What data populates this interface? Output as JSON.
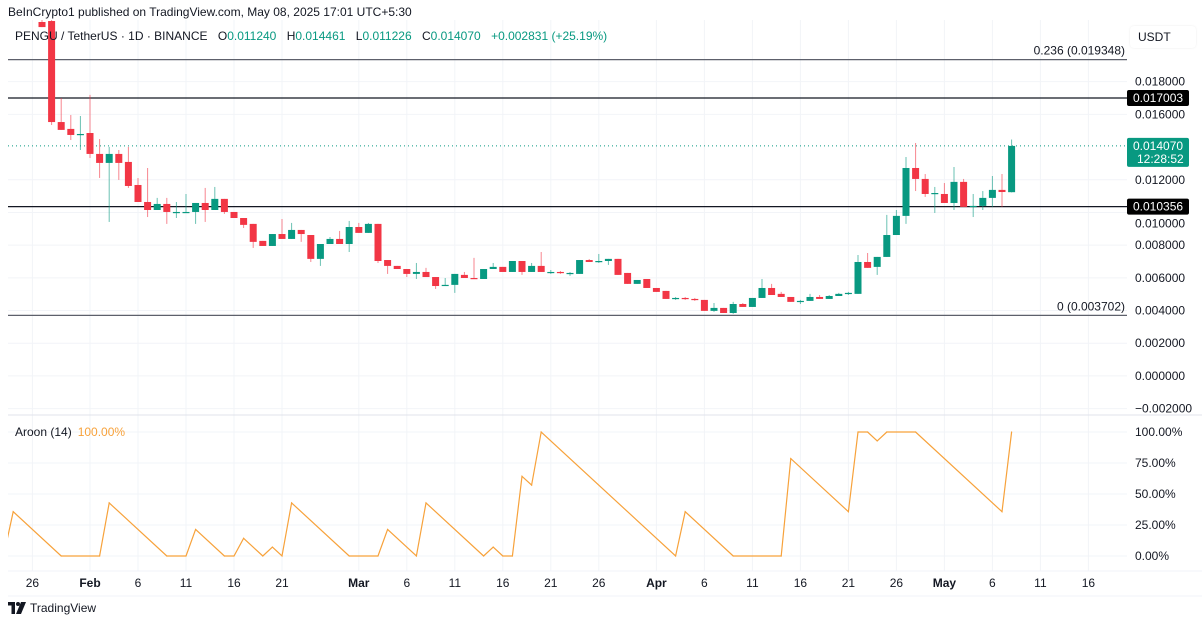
{
  "header": {
    "published": "BeInCrypto1 published on TradingView.com, May 08, 2025 17:01 UTC+5:30",
    "symbol": "PENGU / TetherUS · 1D · BINANCE",
    "open_label": "O",
    "open": "0.011240",
    "high_label": "H",
    "high": "0.014461",
    "low_label": "L",
    "low": "0.011226",
    "close_label": "C",
    "close": "0.014070",
    "change": "+0.002831 (+25.19%)"
  },
  "price_axis": {
    "currency": "USDT",
    "ticks": [
      "0.018000",
      "0.016000",
      "0.012000",
      "0.010000",
      "0.008000",
      "0.006000",
      "0.004000",
      "0.002000",
      "0.000000",
      "−0.002000"
    ]
  },
  "levels": [
    {
      "label": "0.236 (0.019348)",
      "value": 0.019348,
      "kind": "fib"
    },
    {
      "label": "0.017003",
      "value": 0.017003,
      "kind": "badge"
    },
    {
      "label": "0.010356",
      "value": 0.010356,
      "kind": "badge"
    },
    {
      "label": "0 (0.003702)",
      "value": 0.003702,
      "kind": "fib"
    }
  ],
  "last_price": {
    "value": 0.01407,
    "label": "0.014070",
    "countdown": "12:28:52"
  },
  "indicator": {
    "name": "Aroon (14)",
    "value": "100.00%",
    "ticks": [
      {
        "label": "100.00%",
        "value": 100
      },
      {
        "label": "75.00%",
        "value": 75
      },
      {
        "label": "50.00%",
        "value": 50
      },
      {
        "label": "25.00%",
        "value": 25
      },
      {
        "label": "0.00%",
        "value": 0
      }
    ]
  },
  "time_axis": {
    "ticks": [
      {
        "label": "26",
        "date": "2025-01-26",
        "major": false
      },
      {
        "label": "Feb",
        "date": "2025-02-01",
        "major": true
      },
      {
        "label": "6",
        "date": "2025-02-06",
        "major": false
      },
      {
        "label": "11",
        "date": "2025-02-11",
        "major": false
      },
      {
        "label": "16",
        "date": "2025-02-16",
        "major": false
      },
      {
        "label": "21",
        "date": "2025-02-21",
        "major": false
      },
      {
        "label": "Mar",
        "date": "2025-03-01",
        "major": true
      },
      {
        "label": "6",
        "date": "2025-03-06",
        "major": false
      },
      {
        "label": "11",
        "date": "2025-03-11",
        "major": false
      },
      {
        "label": "16",
        "date": "2025-03-16",
        "major": false
      },
      {
        "label": "21",
        "date": "2025-03-21",
        "major": false
      },
      {
        "label": "26",
        "date": "2025-03-26",
        "major": false
      },
      {
        "label": "Apr",
        "date": "2025-04-01",
        "major": true
      },
      {
        "label": "6",
        "date": "2025-04-06",
        "major": false
      },
      {
        "label": "11",
        "date": "2025-04-11",
        "major": false
      },
      {
        "label": "16",
        "date": "2025-04-16",
        "major": false
      },
      {
        "label": "21",
        "date": "2025-04-21",
        "major": false
      },
      {
        "label": "26",
        "date": "2025-04-26",
        "major": false
      },
      {
        "label": "May",
        "date": "2025-05-01",
        "major": true
      },
      {
        "label": "6",
        "date": "2025-05-06",
        "major": false
      },
      {
        "label": "11",
        "date": "2025-05-11",
        "major": false
      },
      {
        "label": "16",
        "date": "2025-05-16",
        "major": false
      }
    ]
  },
  "footer": {
    "brand": "TradingView"
  },
  "colors": {
    "up": "#089981",
    "down": "#f23645",
    "aroon_up": "#f7a23b",
    "level": "#131722",
    "fib": "#787b86"
  },
  "chart_data": {
    "type": "candlestick",
    "ylim": [
      -0.00239,
      0.02165
    ],
    "aroon_ylim": [
      0,
      100
    ],
    "grid": true,
    "candles": [
      [
        "2025-01-27",
        0.02165,
        0.02177,
        0.02134,
        0.02134
      ],
      [
        "2025-01-28",
        0.02171,
        0.02177,
        0.01535,
        0.01553
      ],
      [
        "2025-01-29",
        0.01553,
        0.017,
        0.01505,
        0.01505
      ],
      [
        "2025-01-30",
        0.01511,
        0.01596,
        0.01443,
        0.01474
      ],
      [
        "2025-01-31",
        0.01474,
        0.0159,
        0.01382,
        0.0148
      ],
      [
        "2025-02-01",
        0.01486,
        0.01719,
        0.01333,
        0.01358
      ],
      [
        "2025-02-02",
        0.01358,
        0.01449,
        0.01211,
        0.01303
      ],
      [
        "2025-02-03",
        0.01303,
        0.01401,
        0.00942,
        0.01358
      ],
      [
        "2025-02-04",
        0.01358,
        0.01382,
        0.01199,
        0.01303
      ],
      [
        "2025-02-05",
        0.01309,
        0.01401,
        0.0115,
        0.01162
      ],
      [
        "2025-02-06",
        0.01168,
        0.01211,
        0.01064,
        0.01064
      ],
      [
        "2025-02-07",
        0.01064,
        0.01272,
        0.00972,
        0.01015
      ],
      [
        "2025-02-08",
        0.01015,
        0.01089,
        0.01015,
        0.01052
      ],
      [
        "2025-02-09",
        0.01052,
        0.01089,
        0.0093,
        0.01003
      ],
      [
        "2025-02-10",
        0.01003,
        0.01064,
        0.00966,
        0.01003
      ],
      [
        "2025-02-11",
        0.01003,
        0.01113,
        0.00997,
        0.01003
      ],
      [
        "2025-02-12",
        0.01003,
        0.01058,
        0.0093,
        0.01058
      ],
      [
        "2025-02-13",
        0.01058,
        0.0115,
        0.00942,
        0.01015
      ],
      [
        "2025-02-14",
        0.01015,
        0.01156,
        0.01015,
        0.01083
      ],
      [
        "2025-02-15",
        0.01083,
        0.01083,
        0.00991,
        0.01003
      ],
      [
        "2025-02-16",
        0.01003,
        0.01003,
        0.00966,
        0.00966
      ],
      [
        "2025-02-17",
        0.00966,
        0.00966,
        0.00905,
        0.00924
      ],
      [
        "2025-02-18",
        0.0093,
        0.0093,
        0.00783,
        0.0082
      ],
      [
        "2025-02-19",
        0.00826,
        0.00826,
        0.00795,
        0.00795
      ],
      [
        "2025-02-20",
        0.00795,
        0.00868,
        0.00795,
        0.00868
      ],
      [
        "2025-02-21",
        0.00868,
        0.0096,
        0.00838,
        0.00838
      ],
      [
        "2025-02-22",
        0.00838,
        0.00936,
        0.00838,
        0.00893
      ],
      [
        "2025-02-23",
        0.00893,
        0.00893,
        0.0082,
        0.00868
      ],
      [
        "2025-02-24",
        0.00862,
        0.00862,
        0.00697,
        0.00716
      ],
      [
        "2025-02-25",
        0.00716,
        0.00807,
        0.00673,
        0.00807
      ],
      [
        "2025-02-26",
        0.00807,
        0.0085,
        0.00807,
        0.00838
      ],
      [
        "2025-02-27",
        0.00838,
        0.00887,
        0.00807,
        0.00807
      ],
      [
        "2025-02-28",
        0.00807,
        0.00948,
        0.00758,
        0.00911
      ],
      [
        "2025-03-01",
        0.00911,
        0.00936,
        0.00875,
        0.00875
      ],
      [
        "2025-03-02",
        0.00875,
        0.00936,
        0.00875,
        0.0093
      ],
      [
        "2025-03-03",
        0.0093,
        0.0093,
        0.00691,
        0.00703
      ],
      [
        "2025-03-04",
        0.00709,
        0.00709,
        0.00624,
        0.00673
      ],
      [
        "2025-03-05",
        0.00673,
        0.00673,
        0.00654,
        0.00654
      ],
      [
        "2025-03-06",
        0.00654,
        0.00654,
        0.00605,
        0.00624
      ],
      [
        "2025-03-07",
        0.00624,
        0.00691,
        0.00593,
        0.00636
      ],
      [
        "2025-03-08",
        0.00636,
        0.00661,
        0.00605,
        0.00605
      ],
      [
        "2025-03-09",
        0.00605,
        0.00605,
        0.00532,
        0.0055
      ],
      [
        "2025-03-10",
        0.0055,
        0.00599,
        0.0055,
        0.00557
      ],
      [
        "2025-03-11",
        0.00557,
        0.00624,
        0.00508,
        0.00624
      ],
      [
        "2025-03-12",
        0.00618,
        0.00636,
        0.00599,
        0.00599
      ],
      [
        "2025-03-13",
        0.00599,
        0.00722,
        0.00593,
        0.00593
      ],
      [
        "2025-03-14",
        0.00593,
        0.00654,
        0.00593,
        0.00654
      ],
      [
        "2025-03-15",
        0.00654,
        0.00691,
        0.00654,
        0.00667
      ],
      [
        "2025-03-16",
        0.00667,
        0.00667,
        0.00636,
        0.00636
      ],
      [
        "2025-03-17",
        0.00636,
        0.00703,
        0.00636,
        0.00703
      ],
      [
        "2025-03-18",
        0.00703,
        0.00703,
        0.00618,
        0.00636
      ],
      [
        "2025-03-19",
        0.00636,
        0.00691,
        0.00636,
        0.00673
      ],
      [
        "2025-03-20",
        0.00673,
        0.00758,
        0.00636,
        0.00636
      ],
      [
        "2025-03-21",
        0.00636,
        0.00648,
        0.00624,
        0.00636
      ],
      [
        "2025-03-22",
        0.00636,
        0.00642,
        0.00624,
        0.0063
      ],
      [
        "2025-03-23",
        0.0063,
        0.00636,
        0.00612,
        0.0063
      ],
      [
        "2025-03-24",
        0.00624,
        0.00709,
        0.00624,
        0.00709
      ],
      [
        "2025-03-25",
        0.00709,
        0.00715,
        0.00697,
        0.00697
      ],
      [
        "2025-03-26",
        0.00697,
        0.00746,
        0.00691,
        0.00703
      ],
      [
        "2025-03-27",
        0.00703,
        0.00716,
        0.00679,
        0.00716
      ],
      [
        "2025-03-28",
        0.00716,
        0.00716,
        0.00618,
        0.00618
      ],
      [
        "2025-03-29",
        0.0063,
        0.0063,
        0.00563,
        0.00563
      ],
      [
        "2025-03-30",
        0.00563,
        0.00587,
        0.00563,
        0.00587
      ],
      [
        "2025-03-31",
        0.00593,
        0.00593,
        0.00538,
        0.00538
      ],
      [
        "2025-04-01",
        0.00538,
        0.00538,
        0.00514,
        0.00514
      ],
      [
        "2025-04-02",
        0.0052,
        0.0052,
        0.00471,
        0.00471
      ],
      [
        "2025-04-03",
        0.00471,
        0.00483,
        0.00465,
        0.00477
      ],
      [
        "2025-04-04",
        0.00477,
        0.00483,
        0.00465,
        0.00471
      ],
      [
        "2025-04-05",
        0.00471,
        0.00477,
        0.00459,
        0.00465
      ],
      [
        "2025-04-06",
        0.00465,
        0.00465,
        0.00398,
        0.00398
      ],
      [
        "2025-04-07",
        0.00398,
        0.00446,
        0.00392,
        0.00416
      ],
      [
        "2025-04-08",
        0.00416,
        0.00416,
        0.00385,
        0.00385
      ],
      [
        "2025-04-09",
        0.00385,
        0.00453,
        0.0038,
        0.0044
      ],
      [
        "2025-04-10",
        0.0044,
        0.00446,
        0.00422,
        0.00422
      ],
      [
        "2025-04-11",
        0.00422,
        0.00477,
        0.00422,
        0.00477
      ],
      [
        "2025-04-12",
        0.00477,
        0.00593,
        0.00477,
        0.00538
      ],
      [
        "2025-04-13",
        0.00538,
        0.00563,
        0.00495,
        0.00495
      ],
      [
        "2025-04-14",
        0.00502,
        0.00514,
        0.00483,
        0.00483
      ],
      [
        "2025-04-15",
        0.00483,
        0.00483,
        0.00453,
        0.00453
      ],
      [
        "2025-04-16",
        0.00453,
        0.00465,
        0.0044,
        0.00459
      ],
      [
        "2025-04-17",
        0.00459,
        0.00502,
        0.00459,
        0.00483
      ],
      [
        "2025-04-18",
        0.00483,
        0.00495,
        0.00471,
        0.00471
      ],
      [
        "2025-04-19",
        0.00471,
        0.00495,
        0.00471,
        0.00489
      ],
      [
        "2025-04-20",
        0.00489,
        0.00508,
        0.00489,
        0.00502
      ],
      [
        "2025-04-21",
        0.00502,
        0.00514,
        0.00495,
        0.00508
      ],
      [
        "2025-04-22",
        0.00502,
        0.0074,
        0.00502,
        0.00697
      ],
      [
        "2025-04-23",
        0.00697,
        0.00752,
        0.00661,
        0.00661
      ],
      [
        "2025-04-24",
        0.00667,
        0.00728,
        0.00618,
        0.00728
      ],
      [
        "2025-04-25",
        0.00728,
        0.00985,
        0.00728,
        0.00862
      ],
      [
        "2025-04-26",
        0.00862,
        0.01015,
        0.00862,
        0.00979
      ],
      [
        "2025-04-27",
        0.00979,
        0.01339,
        0.0093,
        0.01272
      ],
      [
        "2025-04-28",
        0.01272,
        0.01425,
        0.01131,
        0.01205
      ],
      [
        "2025-04-29",
        0.01205,
        0.01235,
        0.01095,
        0.01113
      ],
      [
        "2025-04-30",
        0.01113,
        0.01156,
        0.00997,
        0.01119
      ],
      [
        "2025-05-01",
        0.01113,
        0.0118,
        0.01058,
        0.01058
      ],
      [
        "2025-05-02",
        0.01058,
        0.01278,
        0.01015,
        0.01187
      ],
      [
        "2025-05-03",
        0.01187,
        0.01205,
        0.01034,
        0.01034
      ],
      [
        "2025-05-04",
        0.01034,
        0.01113,
        0.00972,
        0.0104
      ],
      [
        "2025-05-05",
        0.0104,
        0.01131,
        0.01015,
        0.01089
      ],
      [
        "2025-05-06",
        0.01089,
        0.01223,
        0.01034,
        0.01138
      ],
      [
        "2025-05-07",
        0.01138,
        0.01235,
        0.01034,
        0.01125
      ],
      [
        "2025-05-08",
        0.01124,
        0.014461,
        0.011226,
        0.01407
      ]
    ],
    "aroon_up": [
      [
        "2025-01-23",
        0
      ],
      [
        "2025-01-24",
        35.71
      ],
      [
        "2025-01-29",
        0
      ],
      [
        "2025-02-02",
        0
      ],
      [
        "2025-02-03",
        42.86
      ],
      [
        "2025-02-09",
        0
      ],
      [
        "2025-02-11",
        0
      ],
      [
        "2025-02-12",
        21.43
      ],
      [
        "2025-02-15",
        0
      ],
      [
        "2025-02-16",
        0
      ],
      [
        "2025-02-17",
        14.29
      ],
      [
        "2025-02-19",
        0
      ],
      [
        "2025-02-20",
        7.14
      ],
      [
        "2025-02-21",
        0
      ],
      [
        "2025-02-22",
        42.86
      ],
      [
        "2025-02-28",
        0
      ],
      [
        "2025-03-03",
        0
      ],
      [
        "2025-03-04",
        21.43
      ],
      [
        "2025-03-07",
        0
      ],
      [
        "2025-03-08",
        42.86
      ],
      [
        "2025-03-14",
        0
      ],
      [
        "2025-03-15",
        7.14
      ],
      [
        "2025-03-16",
        0
      ],
      [
        "2025-03-17",
        0
      ],
      [
        "2025-03-18",
        64.29
      ],
      [
        "2025-03-19",
        57.14
      ],
      [
        "2025-03-20",
        100
      ],
      [
        "2025-04-03",
        0
      ],
      [
        "2025-04-04",
        35.71
      ],
      [
        "2025-04-09",
        0
      ],
      [
        "2025-04-14",
        0
      ],
      [
        "2025-04-15",
        78.57
      ],
      [
        "2025-04-21",
        35.71
      ],
      [
        "2025-04-22",
        100
      ],
      [
        "2025-04-23",
        100
      ],
      [
        "2025-04-24",
        92.86
      ],
      [
        "2025-04-25",
        100
      ],
      [
        "2025-04-28",
        100
      ],
      [
        "2025-05-07",
        35.71
      ],
      [
        "2025-05-08",
        100
      ]
    ]
  }
}
